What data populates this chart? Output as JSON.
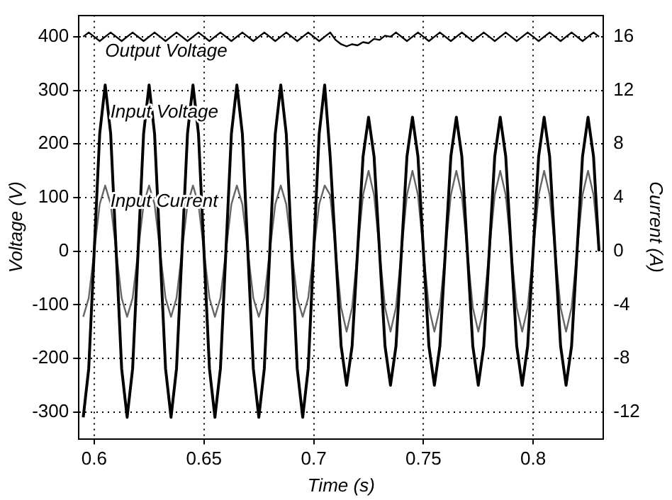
{
  "chart_data": {
    "type": "line",
    "xlabel": "Time (s)",
    "ylabel": "Voltage (V)",
    "y2label": "Current (A)",
    "x": [
      0.595,
      0.5975,
      0.6,
      0.6025,
      0.605,
      0.6075,
      0.61,
      0.6125,
      0.615,
      0.6175,
      0.62,
      0.6225,
      0.625,
      0.6275,
      0.63,
      0.6325,
      0.635,
      0.6375,
      0.64,
      0.6425,
      0.645,
      0.6475,
      0.65,
      0.6525,
      0.655,
      0.6575,
      0.66,
      0.6625,
      0.665,
      0.6675,
      0.67,
      0.6725,
      0.675,
      0.6775,
      0.68,
      0.6825,
      0.685,
      0.6875,
      0.69,
      0.6925,
      0.695,
      0.6975,
      0.7,
      0.7025,
      0.705,
      0.7075,
      0.71,
      0.7125,
      0.715,
      0.7175,
      0.72,
      0.7225,
      0.725,
      0.7275,
      0.73,
      0.7325,
      0.735,
      0.7375,
      0.74,
      0.7425,
      0.745,
      0.7475,
      0.75,
      0.7525,
      0.755,
      0.7575,
      0.76,
      0.7625,
      0.765,
      0.7675,
      0.77,
      0.7725,
      0.775,
      0.7775,
      0.78,
      0.7825,
      0.785,
      0.7875,
      0.79,
      0.7925,
      0.795,
      0.7975,
      0.8,
      0.8025,
      0.805,
      0.8075,
      0.81,
      0.8125,
      0.815,
      0.8175,
      0.82,
      0.8225,
      0.825,
      0.8275,
      0.83
    ],
    "series": [
      {
        "name": "Output Voltage",
        "color": "#000000",
        "values": [
          400,
          408,
          400,
          392,
          400,
          408,
          400,
          392,
          400,
          408,
          400,
          392,
          400,
          408,
          400,
          392,
          400,
          408,
          400,
          392,
          400,
          408,
          400,
          392,
          400,
          408,
          400,
          392,
          400,
          408,
          400,
          392,
          400,
          408,
          400,
          392,
          400,
          408,
          400,
          392,
          400,
          408,
          400,
          392,
          400,
          408,
          394,
          386,
          382,
          386,
          384,
          390,
          388,
          396,
          394,
          402,
          400,
          408,
          400,
          392,
          400,
          408,
          400,
          392,
          400,
          408,
          400,
          392,
          400,
          408,
          400,
          392,
          400,
          408,
          400,
          392,
          400,
          408,
          400,
          392,
          400,
          408,
          400,
          392,
          400,
          408,
          400,
          392,
          400,
          408,
          400,
          392,
          400,
          408,
          400
        ]
      },
      {
        "name": "Input Voltage",
        "color": "#000000",
        "values": [
          -310,
          -219,
          0,
          219,
          310,
          219,
          0,
          -219,
          -310,
          -219,
          0,
          219,
          310,
          219,
          0,
          -219,
          -310,
          -219,
          0,
          219,
          310,
          219,
          0,
          -219,
          -310,
          -219,
          0,
          219,
          310,
          219,
          0,
          -219,
          -310,
          -219,
          0,
          219,
          310,
          219,
          0,
          -219,
          -310,
          -219,
          0,
          219,
          310,
          177,
          0,
          -177,
          -250,
          -177,
          0,
          177,
          250,
          177,
          0,
          -177,
          -250,
          -177,
          0,
          177,
          250,
          177,
          0,
          -177,
          -250,
          -177,
          0,
          177,
          250,
          177,
          0,
          -177,
          -250,
          -177,
          0,
          177,
          250,
          177,
          0,
          -177,
          -250,
          -177,
          0,
          177,
          250,
          177,
          0,
          -177,
          -250,
          -177,
          0,
          177,
          250,
          177,
          0
        ]
      },
      {
        "name": "Input Current",
        "color": "#666666",
        "axis": "y2",
        "values": [
          -4.9,
          -3.5,
          0,
          3.5,
          4.9,
          3.5,
          0,
          -3.5,
          -4.9,
          -3.5,
          0,
          3.5,
          4.9,
          3.5,
          0,
          -3.5,
          -4.9,
          -3.5,
          0,
          3.5,
          4.9,
          3.5,
          0,
          -3.5,
          -4.9,
          -3.5,
          0,
          3.5,
          4.9,
          3.5,
          0,
          -3.5,
          -4.9,
          -3.5,
          0,
          3.5,
          4.9,
          3.5,
          0,
          -3.5,
          -4.9,
          -3.5,
          0,
          3.5,
          4.9,
          4.2,
          0,
          -4.2,
          -6,
          -4.2,
          0,
          4.2,
          6,
          4.2,
          0,
          -4.2,
          -6,
          -4.2,
          0,
          4.2,
          6,
          4.2,
          0,
          -4.2,
          -6,
          -4.2,
          0,
          4.2,
          6,
          4.2,
          0,
          -4.2,
          -6,
          -4.2,
          0,
          4.2,
          6,
          4.2,
          0,
          -4.2,
          -6,
          -4.2,
          0,
          4.2,
          6,
          4.2,
          0,
          -4.2,
          -6,
          -4.2,
          0,
          4.2,
          6,
          4.2,
          0
        ]
      }
    ],
    "xlim": [
      0.593,
      0.832
    ],
    "xticks": [
      0.6,
      0.65,
      0.7,
      0.75,
      0.8
    ],
    "ylim": [
      -350,
      440
    ],
    "yticks": [
      -300,
      -200,
      -100,
      0,
      100,
      200,
      300,
      400
    ],
    "y2lim": [
      -14,
      17.6
    ],
    "y2ticks": [
      -12,
      -8,
      -4,
      0,
      4,
      8,
      12,
      16
    ],
    "grid": true,
    "legend": false,
    "marker": "none",
    "line_style": "solid"
  }
}
